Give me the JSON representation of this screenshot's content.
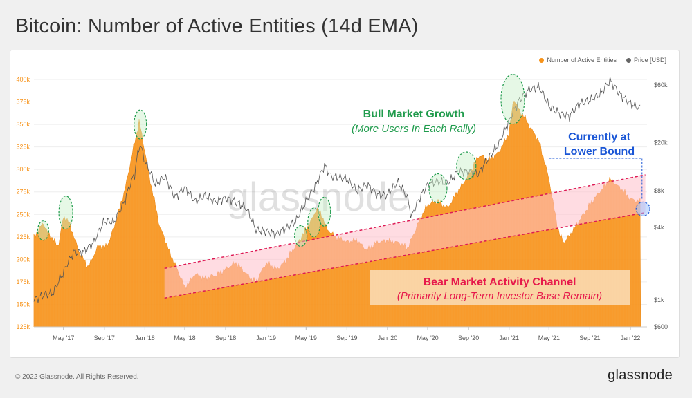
{
  "header": {
    "title": "Bitcoin: Number of Active Entities (14d EMA)"
  },
  "footer": {
    "copyright": "© 2022 Glassnode. All Rights Reserved.",
    "brand": "glassnode"
  },
  "watermark": "glassnode",
  "colors": {
    "entities": "#f7931a",
    "price": "#666666",
    "channel_fill": "#ffc0cb",
    "channel_line": "#dd1a55",
    "bull": "#1f9b4c",
    "current": "#1a56d6",
    "bear": "#e6194b",
    "bear_box": "#fad9b0"
  },
  "chart_data": {
    "type": "area",
    "title": "Bitcoin: Number of Active Entities (14d EMA)",
    "x_ticks": [
      "May '17",
      "Sep '17",
      "Jan '18",
      "May '18",
      "Sep '18",
      "Jan '19",
      "May '19",
      "Sep '19",
      "Jan '20",
      "May '20",
      "Sep '20",
      "Jan '21",
      "May '21",
      "Sep '21",
      "Jan '22"
    ],
    "y_left_ticks": [
      "125k",
      "150k",
      "175k",
      "200k",
      "225k",
      "250k",
      "275k",
      "300k",
      "325k",
      "350k",
      "375k",
      "400k"
    ],
    "y_left_range": [
      125000,
      400000
    ],
    "y_right_ticks": [
      "$600",
      "$1k",
      "$4k",
      "$8k",
      "$20k",
      "$60k"
    ],
    "y_right_scale": "log",
    "legend": [
      "Number of Active Entities",
      "Price [USD]"
    ],
    "legend_position": "top-right",
    "series": [
      {
        "name": "Number of Active Entities",
        "x": [
          "2017-02-01",
          "2017-03-01",
          "2017-03-15",
          "2017-04-01",
          "2017-04-15",
          "2017-05-01",
          "2017-05-15",
          "2017-06-01",
          "2017-06-15",
          "2017-07-01",
          "2017-07-15",
          "2017-08-01",
          "2017-08-15",
          "2017-09-01",
          "2017-09-15",
          "2017-10-01",
          "2017-10-15",
          "2017-11-01",
          "2017-11-15",
          "2017-12-01",
          "2017-12-15",
          "2018-01-01",
          "2018-01-15",
          "2018-02-01",
          "2018-02-15",
          "2018-03-01",
          "2018-03-15",
          "2018-04-01",
          "2018-04-15",
          "2018-05-01",
          "2018-05-15",
          "2018-06-01",
          "2018-07-01",
          "2018-08-01",
          "2018-09-01",
          "2018-10-01",
          "2018-11-01",
          "2018-12-01",
          "2019-01-01",
          "2019-02-01",
          "2019-03-01",
          "2019-04-01",
          "2019-05-01",
          "2019-05-15",
          "2019-06-01",
          "2019-06-15",
          "2019-07-01",
          "2019-08-01",
          "2019-09-01",
          "2019-10-01",
          "2019-11-01",
          "2019-12-01",
          "2020-01-01",
          "2020-02-01",
          "2020-03-01",
          "2020-04-01",
          "2020-05-01",
          "2020-06-01",
          "2020-07-01",
          "2020-08-01",
          "2020-09-01",
          "2020-10-01",
          "2020-11-01",
          "2020-12-01",
          "2021-01-01",
          "2021-01-15",
          "2021-02-01",
          "2021-02-15",
          "2021-03-01",
          "2021-04-01",
          "2021-05-01",
          "2021-05-15",
          "2021-06-01",
          "2021-06-15",
          "2021-07-01",
          "2021-08-01",
          "2021-09-01",
          "2021-10-01",
          "2021-11-01",
          "2021-12-01",
          "2022-01-01",
          "2022-02-01"
        ],
        "values": [
          225000,
          240000,
          228000,
          222000,
          215000,
          248000,
          242000,
          225000,
          210000,
          200000,
          192000,
          205000,
          215000,
          212000,
          220000,
          238000,
          255000,
          275000,
          300000,
          330000,
          355000,
          320000,
          290000,
          260000,
          235000,
          225000,
          210000,
          195000,
          182000,
          168000,
          175000,
          185000,
          178000,
          182000,
          190000,
          195000,
          185000,
          175000,
          195000,
          190000,
          198000,
          215000,
          235000,
          242000,
          255000,
          250000,
          235000,
          225000,
          218000,
          222000,
          210000,
          218000,
          222000,
          218000,
          212000,
          240000,
          260000,
          265000,
          258000,
          275000,
          295000,
          315000,
          310000,
          320000,
          340000,
          378000,
          365000,
          360000,
          350000,
          330000,
          290000,
          260000,
          228000,
          218000,
          225000,
          245000,
          260000,
          275000,
          290000,
          278000,
          268000,
          265000
        ]
      },
      {
        "name": "Price [USD]",
        "x": [
          "2017-02-01",
          "2017-03-01",
          "2017-04-01",
          "2017-05-01",
          "2017-06-01",
          "2017-07-01",
          "2017-08-01",
          "2017-09-01",
          "2017-10-01",
          "2017-11-01",
          "2017-12-01",
          "2017-12-17",
          "2018-01-01",
          "2018-02-01",
          "2018-03-01",
          "2018-04-01",
          "2018-05-01",
          "2018-06-01",
          "2018-07-01",
          "2018-08-01",
          "2018-09-01",
          "2018-10-01",
          "2018-11-01",
          "2018-12-01",
          "2019-01-01",
          "2019-02-01",
          "2019-03-01",
          "2019-04-01",
          "2019-05-01",
          "2019-06-01",
          "2019-06-26",
          "2019-07-15",
          "2019-08-01",
          "2019-09-01",
          "2019-10-01",
          "2019-11-01",
          "2019-12-01",
          "2020-01-01",
          "2020-02-01",
          "2020-03-01",
          "2020-03-13",
          "2020-04-01",
          "2020-05-01",
          "2020-06-01",
          "2020-07-01",
          "2020-08-01",
          "2020-09-01",
          "2020-10-01",
          "2020-11-01",
          "2020-12-01",
          "2021-01-01",
          "2021-02-01",
          "2021-03-01",
          "2021-04-01",
          "2021-05-01",
          "2021-06-01",
          "2021-07-01",
          "2021-08-01",
          "2021-09-01",
          "2021-10-01",
          "2021-11-01",
          "2021-12-01",
          "2022-01-01",
          "2022-02-01"
        ],
        "values": [
          1000,
          1100,
          1150,
          1700,
          2500,
          2500,
          3000,
          4500,
          4400,
          6500,
          11000,
          19500,
          14000,
          9000,
          10500,
          7000,
          8500,
          6500,
          7300,
          6500,
          7000,
          6500,
          5800,
          3800,
          3700,
          3500,
          3900,
          4500,
          6500,
          9000,
          13000,
          10500,
          10500,
          10000,
          8000,
          9000,
          7400,
          7400,
          9500,
          7000,
          4800,
          6500,
          9000,
          9600,
          9300,
          11500,
          11500,
          11000,
          15000,
          19500,
          30000,
          45000,
          55000,
          58000,
          40000,
          35000,
          33000,
          42000,
          45000,
          50000,
          65000,
          50000,
          42000,
          38000
        ]
      }
    ],
    "annotations": [
      {
        "title": "Bull Market Growth",
        "subtitle": "(More Users In Each Rally)"
      },
      {
        "title_line1": "Currently at",
        "title_line2": "Lower Bound"
      },
      {
        "title": "Bear Market Activity Channel",
        "subtitle": "(Primarily Long-Term Investor Base Remain)"
      }
    ]
  }
}
